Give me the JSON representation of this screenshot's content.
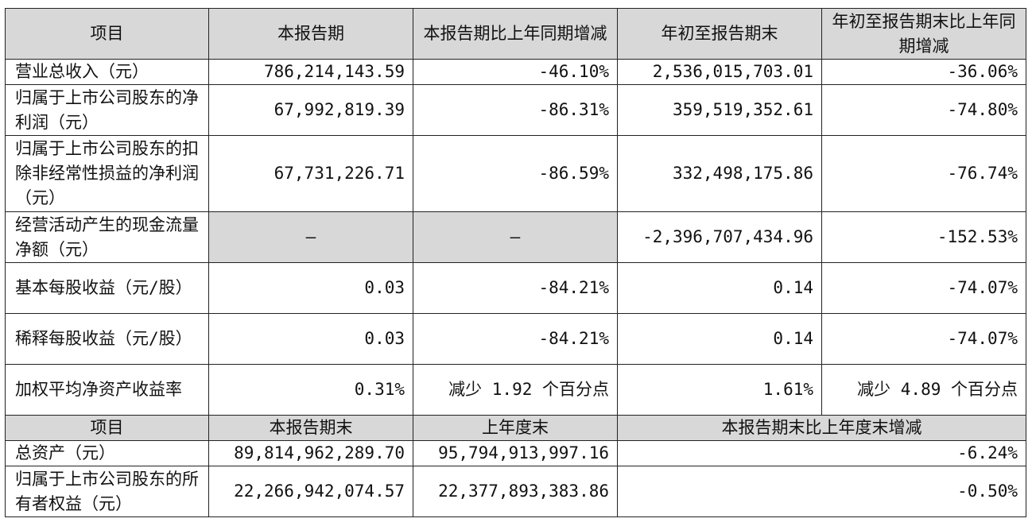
{
  "header": {
    "col1": "项目",
    "col2": "本报告期",
    "col3": "本报告期比上年同期增减",
    "col4": "年初至报告期末",
    "col5": "年初至报告期末比上年同期增减"
  },
  "rows": [
    {
      "label": "营业总收入（元）",
      "current": "786,214,143.59",
      "current_change": "-46.10%",
      "ytd": "2,536,015,703.01",
      "ytd_change": "-36.06%"
    },
    {
      "label": "归属于上市公司股东的净利润（元）",
      "current": "67,992,819.39",
      "current_change": "-86.31%",
      "ytd": "359,519,352.61",
      "ytd_change": "-74.80%"
    },
    {
      "label": "归属于上市公司股东的扣除非经常性损益的净利润（元）",
      "current": "67,731,226.71",
      "current_change": "-86.59%",
      "ytd": "332,498,175.86",
      "ytd_change": "-76.74%"
    },
    {
      "label": "经营活动产生的现金流量净额（元）",
      "current": "—",
      "current_change": "—",
      "ytd": "-2,396,707,434.96",
      "ytd_change": "-152.53%"
    },
    {
      "label": "基本每股收益（元/股）",
      "current": "0.03",
      "current_change": "-84.21%",
      "ytd": "0.14",
      "ytd_change": "-74.07%"
    },
    {
      "label": "稀释每股收益（元/股）",
      "current": "0.03",
      "current_change": "-84.21%",
      "ytd": "0.14",
      "ytd_change": "-74.07%"
    },
    {
      "label": "加权平均净资产收益率",
      "current": "0.31%",
      "current_change": "减少 1.92 个百分点",
      "ytd": "1.61%",
      "ytd_change": "减少 4.89 个百分点"
    }
  ],
  "header2": {
    "col1": "项目",
    "col2": "本报告期末",
    "col3": "上年度末",
    "col4": "本报告期末比上年度末增减"
  },
  "rows2": [
    {
      "label": "总资产（元）",
      "period_end": "89,814,962,289.70",
      "prior_year_end": "95,794,913,997.16",
      "change": "-6.24%"
    },
    {
      "label": "归属于上市公司股东的所有者权益（元）",
      "period_end": "22,266,942,074.57",
      "prior_year_end": "22,377,893,383.86",
      "change": "-0.50%"
    }
  ]
}
